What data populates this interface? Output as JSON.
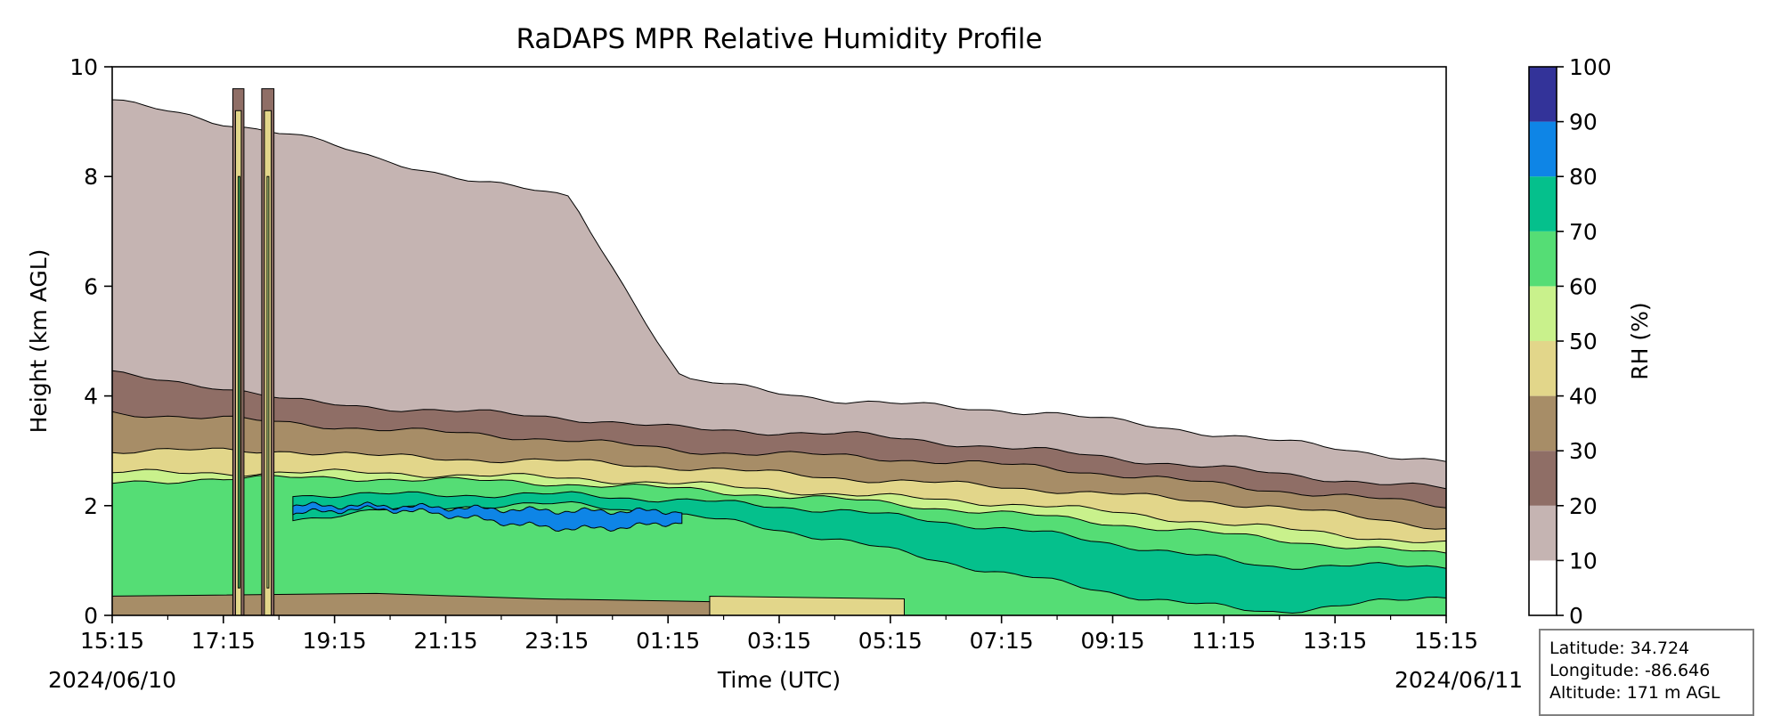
{
  "chart_data": {
    "type": "filled-contour",
    "title": "RaDAPS MPR Relative Humidity Profile",
    "xlabel": "Time (UTC)",
    "ylabel": "Height (km AGL)",
    "x_ticks": [
      "15:15",
      "17:15",
      "19:15",
      "21:15",
      "23:15",
      "01:15",
      "03:15",
      "05:15",
      "07:15",
      "09:15",
      "11:15",
      "13:15",
      "15:15"
    ],
    "x_start_date": "2024/06/10",
    "x_end_date": "2024/06/11",
    "ylim": [
      0,
      10
    ],
    "y_ticks": [
      0,
      2,
      4,
      6,
      8,
      10
    ],
    "colorbar": {
      "label": "RH (%)",
      "levels": [
        0,
        10,
        20,
        30,
        40,
        50,
        60,
        70,
        80,
        90,
        100
      ],
      "colors": [
        "#ffffff",
        "#c5b4b2",
        "#8f6e66",
        "#a78d67",
        "#e2d68a",
        "#c9f18c",
        "#55dd75",
        "#05c08c",
        "#0e85e6",
        "#333399"
      ]
    },
    "contour_bands_km": {
      "time_hours_utc": [
        15.25,
        17.0,
        18.5,
        20.0,
        23.5,
        25.5,
        28.5,
        32.0,
        36.0,
        39.25
      ],
      "rh_above_10": [
        9.4,
        9.0,
        8.8,
        8.3,
        7.6,
        4.3,
        3.9,
        3.7,
        3.2,
        2.8
      ],
      "rh_above_20": [
        4.4,
        4.2,
        3.9,
        3.8,
        3.6,
        3.4,
        3.3,
        3.0,
        2.6,
        2.3
      ],
      "rh_above_30": [
        3.7,
        3.6,
        3.5,
        3.4,
        3.2,
        3.0,
        2.9,
        2.7,
        2.3,
        2.0
      ],
      "rh_above_40": [
        3.0,
        3.0,
        3.0,
        2.9,
        2.8,
        2.7,
        2.5,
        2.3,
        2.0,
        1.6
      ],
      "rh_above_50": [
        2.6,
        2.6,
        2.6,
        2.6,
        2.5,
        2.4,
        2.2,
        2.0,
        1.6,
        1.3
      ],
      "rh_above_60": [
        2.4,
        2.5,
        2.5,
        2.5,
        2.4,
        2.3,
        2.1,
        1.8,
        1.4,
        1.1
      ],
      "rh_above_70": [
        null,
        null,
        2.2,
        2.2,
        2.2,
        2.1,
        1.9,
        1.5,
        0.9,
        0.9
      ],
      "rh_above_80": [
        null,
        null,
        2.0,
        2.0,
        1.9,
        1.9,
        null,
        null,
        null,
        null
      ]
    }
  },
  "info": {
    "latitude": "Latitude: 34.724",
    "longitude": "Longitude: -86.646",
    "altitude": "Altitude: 171 m AGL"
  }
}
